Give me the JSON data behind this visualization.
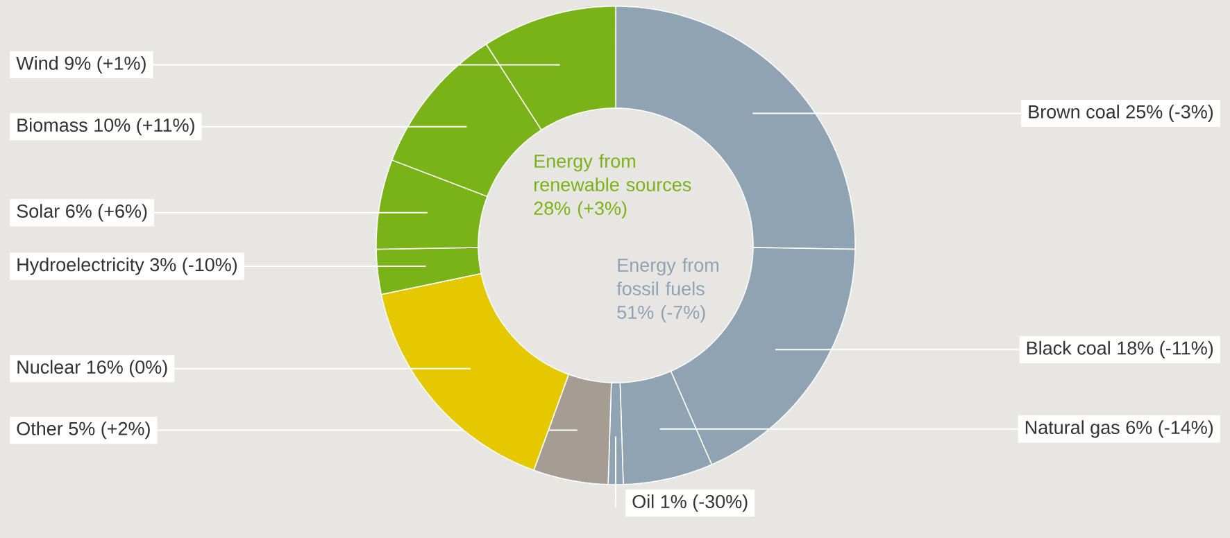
{
  "chart_data": {
    "type": "donut",
    "categories": [
      "Brown coal",
      "Black coal",
      "Natural gas",
      "Oil",
      "Other",
      "Nuclear",
      "Hydroelectricity",
      "Solar",
      "Biomass",
      "Wind"
    ],
    "values": [
      25,
      18,
      6,
      1,
      5,
      16,
      3,
      6,
      10,
      9
    ],
    "colors": [
      "#8fa3b3",
      "#8fa3b3",
      "#8fa3b3",
      "#8fa3b3",
      "#a59d94",
      "#e6c800",
      "#7ab317",
      "#7ab317",
      "#7ab317",
      "#7ab317"
    ],
    "value_labels": [
      "25% (-3%)",
      "18% (-11%)",
      "6% (-14%)",
      "1% (-30%)",
      "5% (+2%)",
      "16% (0%)",
      "3% (-10%)",
      "6% (+6%)",
      "10% (+11%)",
      "9% (+1%)"
    ],
    "annotations": [
      "Energy from renewable sources 28% (+3%)",
      "Energy from fossil fuels 51% (-7%)"
    ]
  }
}
